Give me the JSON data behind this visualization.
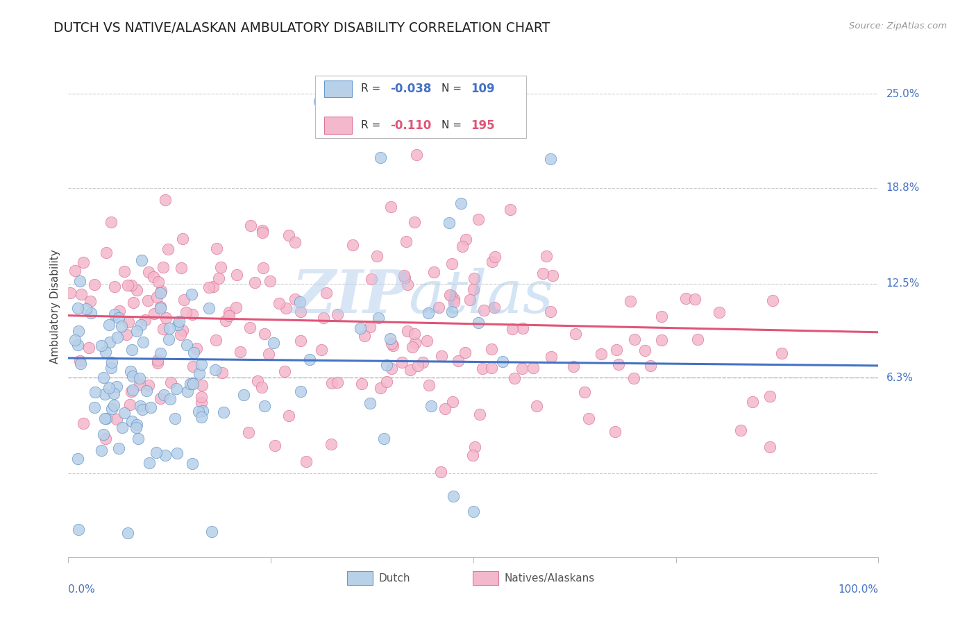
{
  "title": "DUTCH VS NATIVE/ALASKAN AMBULATORY DISABILITY CORRELATION CHART",
  "source": "Source: ZipAtlas.com",
  "ylabel": "Ambulatory Disability",
  "ytick_values": [
    0.0,
    0.063,
    0.125,
    0.188,
    0.25
  ],
  "ytick_labels": [
    "",
    "6.3%",
    "12.5%",
    "18.8%",
    "25.0%"
  ],
  "xlim": [
    0.0,
    1.0
  ],
  "ylim": [
    -0.055,
    0.275
  ],
  "dutch_R": -0.038,
  "dutch_N": 109,
  "native_R": -0.11,
  "native_N": 195,
  "dutch_color": "#b8d0e8",
  "dutch_edge_color": "#6699cc",
  "dutch_line_color": "#4472c4",
  "native_color": "#f4b8cc",
  "native_edge_color": "#dd7799",
  "native_line_color": "#e05577",
  "background_color": "#ffffff",
  "grid_color": "#cccccc",
  "watermark_text": "ZIPatlas",
  "watermark_color": "#c8dff0",
  "title_color": "#222222",
  "source_color": "#999999",
  "axis_label_color": "#4472c4",
  "legend_r_color_dutch": "#4472c4",
  "legend_n_color_dutch": "#4472c4",
  "legend_r_color_native": "#e05577",
  "legend_n_color_native": "#e05577",
  "dutch_trend_start_y": 0.076,
  "dutch_trend_end_y": 0.071,
  "native_trend_start_y": 0.104,
  "native_trend_end_y": 0.093
}
